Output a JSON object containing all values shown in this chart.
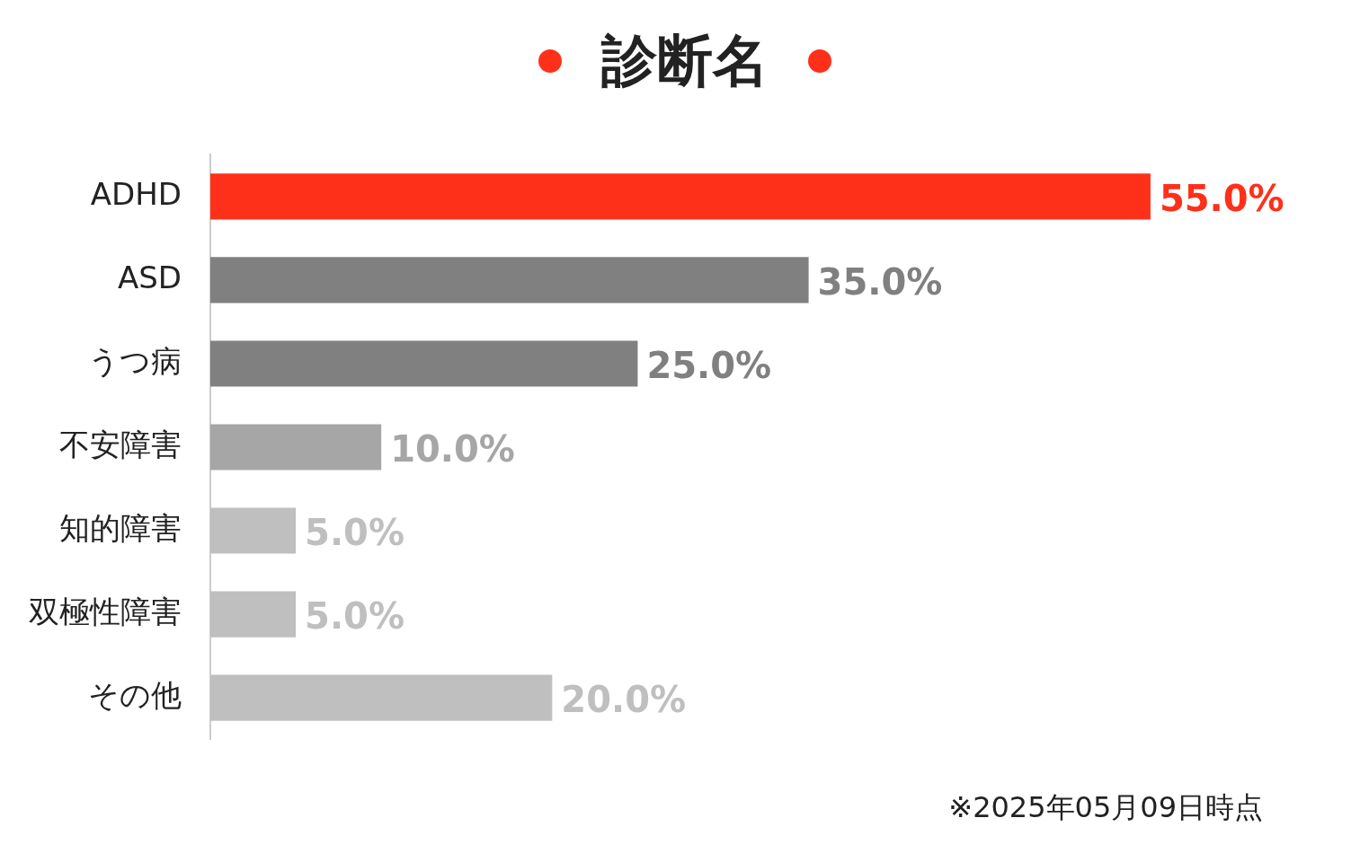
{
  "chart_data": {
    "type": "bar",
    "orientation": "horizontal",
    "title": "診断名",
    "categories": [
      "ADHD",
      "ASD",
      "うつ病",
      "不安障害",
      "知的障害",
      "双極性障害",
      "その他"
    ],
    "values": [
      55,
      35,
      25,
      10,
      5,
      5,
      20
    ],
    "colors": [
      "#ff3019",
      "#808080",
      "#808080",
      "#a6a6a6",
      "#bfbfbf",
      "#bfbfbf",
      "#bfbfbf"
    ],
    "value_labels": [
      "55.0%",
      "35.0%",
      "25.0%",
      "10.0%",
      "5.0%",
      "5.0%",
      "20.0%"
    ],
    "annotations": [
      "※2025年05月09日時点"
    ]
  }
}
